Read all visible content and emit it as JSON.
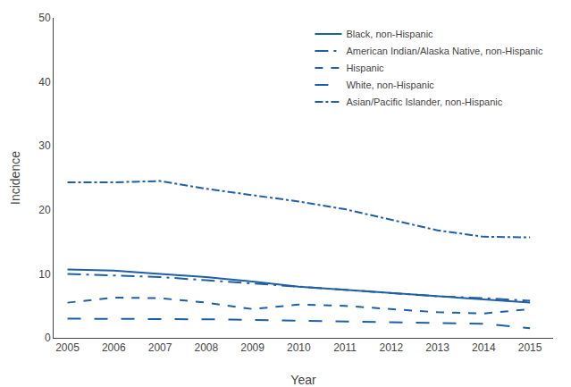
{
  "chart_data": {
    "type": "line",
    "x": [
      2005,
      2006,
      2007,
      2008,
      2009,
      2010,
      2011,
      2012,
      2013,
      2014,
      2015
    ],
    "series": [
      {
        "name": "Black, non-Hispanic",
        "color": "#1f5fa6",
        "line_style": "solid",
        "values": [
          10.7,
          10.5,
          10.0,
          9.5,
          8.8,
          8.0,
          7.5,
          7.0,
          6.5,
          6.0,
          5.5
        ]
      },
      {
        "name": "American Indian/Alaska Native, non-Hispanic",
        "color": "#1f5fa6",
        "line_style": "longdashdot",
        "values": [
          10.0,
          9.8,
          9.5,
          9.0,
          8.5,
          8.0,
          7.5,
          7.0,
          6.5,
          6.2,
          5.8
        ]
      },
      {
        "name": "Hispanic",
        "color": "#1f5fa6",
        "line_style": "dash",
        "values": [
          5.5,
          6.3,
          6.2,
          5.5,
          4.5,
          5.2,
          5.0,
          4.5,
          4.0,
          3.8,
          4.5
        ]
      },
      {
        "name": "White, non-Hispanic",
        "color": "#1f5fa6",
        "line_style": "longdash",
        "values": [
          3.0,
          3.0,
          2.9,
          2.9,
          2.8,
          2.7,
          2.6,
          2.5,
          2.3,
          2.2,
          1.5
        ]
      },
      {
        "name": "Asian/Pacific Islander, non-Hispanic",
        "color": "#1f5fa6",
        "line_style": "dashdot",
        "values": [
          24.3,
          24.3,
          24.5,
          23.3,
          22.3,
          21.3,
          20.1,
          18.5,
          16.8,
          15.8,
          15.7
        ]
      }
    ],
    "xlabel": "Year",
    "ylabel": "Incidence",
    "xlim": [
      2004.7,
      2015.5
    ],
    "xticks": [
      2005,
      2006,
      2007,
      2008,
      2009,
      2010,
      2011,
      2012,
      2013,
      2014,
      2015
    ],
    "ylim": [
      0,
      50
    ],
    "yticks": [
      0,
      10,
      20,
      30,
      40,
      50
    ],
    "grid": false,
    "legend": "upper right"
  }
}
